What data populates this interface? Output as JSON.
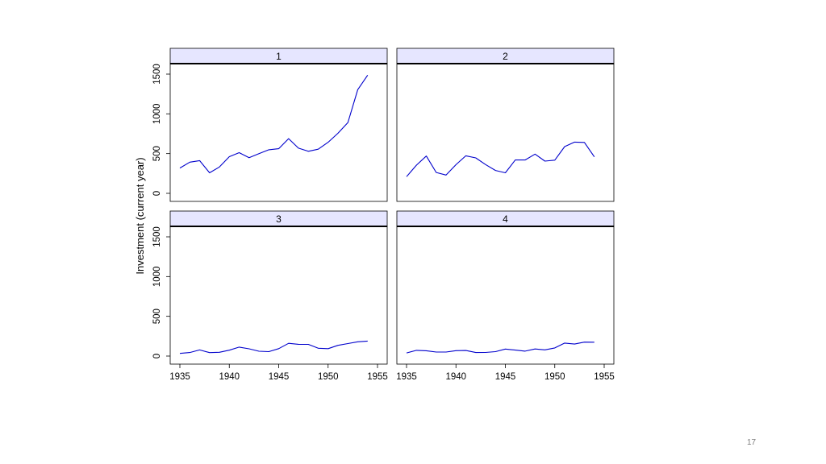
{
  "slide": {
    "number": "17"
  },
  "chart_data": {
    "type": "line",
    "ylabel": "Investment (current year)",
    "xlabel": "",
    "xlim": [
      1935,
      1955
    ],
    "ylim": [
      0,
      1500
    ],
    "xticks": [
      1935,
      1940,
      1945,
      1950,
      1955
    ],
    "yticks": [
      0,
      500,
      1000,
      1500
    ],
    "line_color": "#0000cc",
    "strip_color": "#e6e6ff",
    "x": [
      1935,
      1936,
      1937,
      1938,
      1939,
      1940,
      1941,
      1942,
      1943,
      1944,
      1945,
      1946,
      1947,
      1948,
      1949,
      1950,
      1951,
      1952,
      1953,
      1954
    ],
    "panels": [
      {
        "label": "1",
        "values": [
          318,
          392,
          411,
          258,
          331,
          461,
          512,
          448,
          500,
          548,
          561,
          688,
          569,
          529,
          555,
          643,
          756,
          891,
          1304,
          1487
        ]
      },
      {
        "label": "2",
        "values": [
          210,
          355,
          469,
          262,
          230,
          361,
          472,
          446,
          362,
          288,
          258,
          420,
          420,
          494,
          405,
          418,
          588,
          645,
          641,
          459
        ]
      },
      {
        "label": "3",
        "values": [
          33,
          45,
          77,
          44,
          48,
          74,
          113,
          91,
          61,
          56,
          93,
          160,
          148,
          147,
          98,
          93,
          135,
          157,
          179,
          189
        ]
      },
      {
        "label": "4",
        "values": [
          40,
          72,
          67,
          51,
          51,
          68,
          70,
          45,
          46,
          56,
          88,
          75,
          62,
          89,
          78,
          102,
          163,
          151,
          175,
          174
        ]
      }
    ]
  }
}
